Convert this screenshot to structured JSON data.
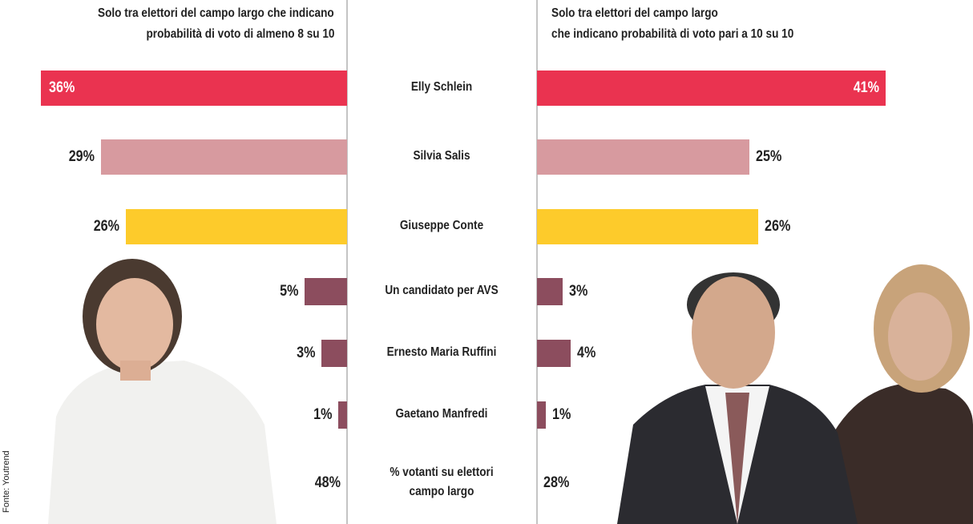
{
  "chart_data": {
    "type": "butterfly-bar",
    "panel_titles": [
      [
        "Solo tra elettori del campo largo che indicano",
        "probabilità di voto di almeno 8 su 10"
      ],
      [
        "Solo tra elettori del campo largo",
        "che indicano probabilità di voto pari a 10 su 10"
      ]
    ],
    "categories": [
      "Elly Schlein",
      "Silvia Salis",
      "Giuseppe Conte",
      "Un candidato per AVS",
      "Ernesto Maria Ruffini",
      "Gaetano Manfredi"
    ],
    "colors": [
      "#ea3350",
      "#d79a9f",
      "#fdcb2b",
      "#8c4d5e",
      "#8c4d5e",
      "#8c4d5e"
    ],
    "series": [
      {
        "values": [
          36,
          29,
          26,
          5,
          3,
          1
        ],
        "value_labels": [
          "36%",
          "29%",
          "26%",
          "5%",
          "3%",
          "1%"
        ]
      },
      {
        "values": [
          41,
          25,
          26,
          3,
          4,
          1
        ],
        "value_labels": [
          "41%",
          "25%",
          "26%",
          "3%",
          "4%",
          "1%"
        ]
      }
    ],
    "turnout": {
      "label": [
        "% votanti su elettori",
        "campo largo"
      ],
      "values": [
        48,
        28
      ],
      "value_labels": [
        "48%",
        "28%"
      ]
    },
    "source": "Fonte: Youtrend"
  }
}
